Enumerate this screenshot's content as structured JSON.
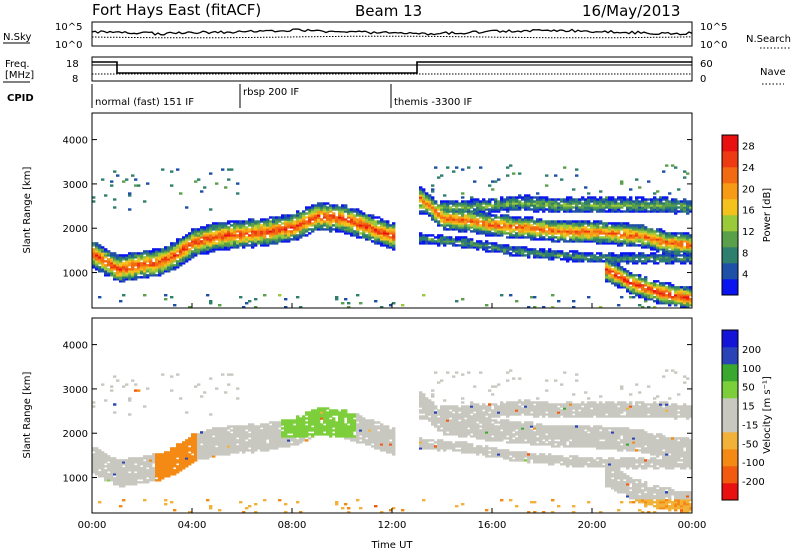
{
  "header": {
    "radar": "Fort Hays East (fitACF)",
    "beam": "Beam 13",
    "date": "16/May/2013"
  },
  "noise_panel": {
    "left_label": "N.Sky",
    "right_label": "N.Search",
    "ticks": [
      "10^5",
      "10^0"
    ]
  },
  "freq_panel": {
    "left_label_line1": "Freq.",
    "left_label_line2": "[MHz]",
    "left_ticks": [
      "18",
      "8"
    ],
    "right_label": "Nave",
    "right_ticks": [
      "60",
      "0"
    ]
  },
  "cpid": {
    "label": "CPID",
    "segments": [
      {
        "name": "normal (fast) 151 IF",
        "start": 0.0,
        "end": 6.0
      },
      {
        "name": "rbsp 200 IF",
        "start": 6.0,
        "end": 12.0
      },
      {
        "name": "themis -3300 IF",
        "start": 12.0,
        "end": 24.0
      }
    ]
  },
  "colors": {
    "power_scale": [
      "#0a14f0",
      "#1f50a8",
      "#2f7f6e",
      "#5aa04a",
      "#9ac93a",
      "#f4c21c",
      "#f79a16",
      "#f26a12",
      "#ee3a12",
      "#e81010"
    ],
    "velocity_scale": [
      "#e81010",
      "#f25a10",
      "#f48a14",
      "#f2b23a",
      "#c8c8c0",
      "#c8c8c0",
      "#7ccf3a",
      "#3aa82e",
      "#2a44b8",
      "#1414d8"
    ]
  },
  "chart_data": [
    {
      "type": "heatmap",
      "panel": "power",
      "ylabel": "Slant Range [km]",
      "y_ticks": [
        "1000",
        "2000",
        "3000",
        "4000"
      ],
      "ylim": [
        200,
        4600
      ],
      "xlim": [
        0,
        24
      ],
      "colorbar": {
        "label": "Power [dB]",
        "ticks": [
          "4",
          "8",
          "12",
          "16",
          "20",
          "24",
          "28"
        ],
        "range": [
          0,
          30
        ]
      },
      "bands": [
        {
          "x": [
            0.0,
            1.0,
            1.8,
            2.6,
            3.2,
            4.0,
            5.0,
            6.0,
            7.0,
            8.0,
            9.0,
            10.0,
            11.0,
            12.0
          ],
          "y": [
            1400,
            1050,
            1150,
            1200,
            1350,
            1650,
            1800,
            1850,
            1900,
            2000,
            2250,
            2200,
            2000,
            1800
          ],
          "width_km": 320,
          "peak_dB": 26
        },
        {
          "x": [
            13.0,
            14.0,
            15.0,
            16.0,
            17.0,
            18.0,
            19.0,
            20.0,
            21.0,
            22.0,
            23.0,
            24.0
          ],
          "y": [
            2700,
            2200,
            2150,
            2050,
            2000,
            1950,
            1900,
            1900,
            1850,
            1800,
            1650,
            1600
          ],
          "width_km": 260,
          "peak_dB": 24
        },
        {
          "x": [
            13.0,
            15.0,
            17.0,
            19.0,
            21.0,
            23.0,
            24.0
          ],
          "y": [
            2450,
            2450,
            2550,
            2500,
            2500,
            2500,
            2450
          ],
          "width_km": 180,
          "peak_dB": 12
        },
        {
          "x": [
            13.0,
            15.0,
            17.0,
            19.0,
            21.0,
            23.0,
            24.0
          ],
          "y": [
            1750,
            1650,
            1450,
            1350,
            1300,
            1300,
            1300
          ],
          "width_km": 120,
          "peak_dB": 10
        },
        {
          "x": [
            20.5,
            21.5,
            22.5,
            23.3,
            24.0
          ],
          "y": [
            1050,
            750,
            550,
            450,
            400
          ],
          "width_km": 260,
          "peak_dB": 27
        }
      ]
    },
    {
      "type": "heatmap",
      "panel": "velocity",
      "ylabel": "Slant Range [km]",
      "y_ticks": [
        "1000",
        "2000",
        "3000",
        "4000"
      ],
      "ylim": [
        200,
        4600
      ],
      "xlim": [
        0,
        24
      ],
      "colorbar": {
        "label": "Velocity [m s⁻¹]",
        "ticks": [
          "-200",
          "-100",
          "-50",
          "-15",
          "15",
          "50",
          "100",
          "200"
        ],
        "range": [
          -250,
          250
        ]
      },
      "xlabel": "Time UT",
      "x_ticks": [
        "00:00",
        "04:00",
        "08:00",
        "12:00",
        "16:00",
        "20:00",
        "00:00"
      ],
      "x_tick_values": [
        0,
        4,
        8,
        12,
        16,
        20,
        24
      ]
    }
  ]
}
